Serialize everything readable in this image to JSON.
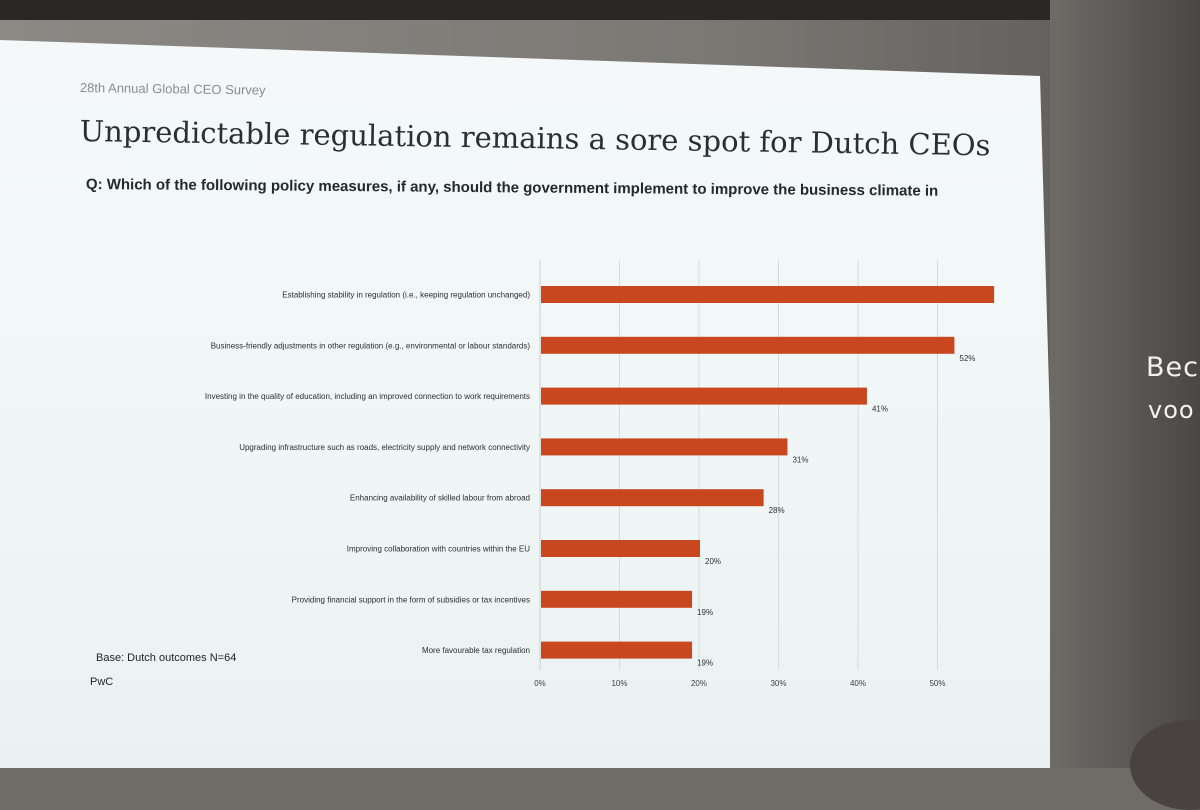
{
  "slide": {
    "kicker": "28th Annual Global CEO Survey",
    "title": "Unpredictable regulation remains a sore spot for Dutch CEOs",
    "question": "Q: Which of the following policy measures, if any, should the government implement to improve the business climate in",
    "base": "Base: Dutch outcomes N=64",
    "source": "PwC"
  },
  "side_text": {
    "line1": "Bec",
    "line2": "voo"
  },
  "chart_data": {
    "type": "bar",
    "orientation": "horizontal",
    "title": "",
    "xlabel": "",
    "ylabel": "",
    "xlim": [
      0,
      57
    ],
    "grid": true,
    "bar_color": "#c8471f",
    "categories": [
      "Establishing stability in regulation (i.e., keeping regulation unchanged)",
      "Business-friendly adjustments in other regulation (e.g., environmental or labour standards)",
      "Investing in the quality of education, including an improved connection to work requirements",
      "Upgrading infrastructure such as roads, electricity supply and network connectivity",
      "Enhancing availability of skilled labour from abroad",
      "Improving collaboration with countries within the EU",
      "Providing financial support in the form of subsidies or tax incentives",
      "More favourable tax regulation"
    ],
    "values": [
      57,
      52,
      41,
      31,
      28,
      20,
      19,
      19
    ],
    "value_labels": [
      "",
      "52%",
      "41%",
      "31%",
      "28%",
      "20%",
      "19%",
      "19%"
    ],
    "x_ticks": [
      0,
      10,
      20,
      30,
      40,
      50
    ],
    "x_tick_labels": [
      "0%",
      "10%",
      "20%",
      "30%",
      "40%",
      "50%"
    ]
  }
}
